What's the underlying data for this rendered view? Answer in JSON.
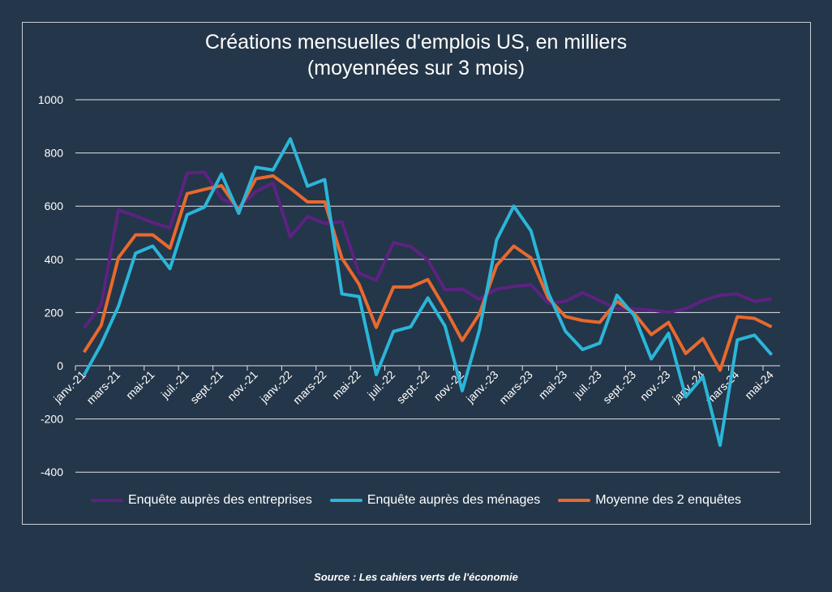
{
  "chart_data": {
    "type": "line",
    "title": "Créations mensuelles d'emplois US, en milliers",
    "subtitle": "(moyennées sur 3 mois)",
    "xlabel": "",
    "ylabel": "",
    "ylim": [
      -400,
      1000
    ],
    "yticks": [
      1000,
      800,
      600,
      400,
      200,
      0,
      -200,
      -400
    ],
    "grid": true,
    "legend_position": "bottom",
    "categories": [
      "janv.-21",
      "févr.-21",
      "mars-21",
      "avr.-21",
      "mai-21",
      "juin-21",
      "juil.-21",
      "août-21",
      "sept.-21",
      "oct.-21",
      "nov.-21",
      "déc.-21",
      "janv.-22",
      "févr.-22",
      "mars-22",
      "avr.-22",
      "mai-22",
      "juin-22",
      "juil.-22",
      "août-22",
      "sept.-22",
      "oct.-22",
      "nov.-22",
      "déc.-22",
      "janv.-23",
      "févr.-23",
      "mars-23",
      "avr.-23",
      "mai-23",
      "juin-23",
      "juil.-23",
      "août-23",
      "sept.-23",
      "oct.-23",
      "nov.-23",
      "déc.-23",
      "janv.-24",
      "févr.-24",
      "mars-24",
      "avr.-24",
      "mai-24"
    ],
    "tick_labels": [
      "janv.-21",
      "mars-21",
      "mai-21",
      "juil.-21",
      "sept.-21",
      "nov.-21",
      "janv.-22",
      "mars-22",
      "mai-22",
      "juil.-22",
      "sept.-22",
      "nov.-22",
      "janv.-23",
      "mars-23",
      "mai-23",
      "juil.-23",
      "sept.-23",
      "nov.-23",
      "janv.-24",
      "mars-24",
      "mai-24"
    ],
    "series": [
      {
        "name": "Enquête auprès des entreprises",
        "color": "#5c2282",
        "values": [
          142,
          228,
          586,
          563,
          538,
          518,
          724,
          728,
          629,
          596,
          655,
          687,
          484,
          561,
          535,
          541,
          348,
          321,
          463,
          448,
          397,
          286,
          288,
          250,
          288,
          298,
          304,
          235,
          242,
          275,
          245,
          214,
          214,
          209,
          201,
          214,
          245,
          265,
          270,
          242,
          252
        ]
      },
      {
        "name": "Enquête auprès des ménages",
        "color": "#2ab6d9",
        "values": [
          -36,
          81,
          223,
          423,
          450,
          365,
          568,
          596,
          721,
          573,
          746,
          736,
          853,
          675,
          700,
          270,
          260,
          -33,
          129,
          146,
          255,
          149,
          -94,
          134,
          473,
          600,
          507,
          275,
          130,
          61,
          85,
          265,
          189,
          26,
          122,
          -117,
          -41,
          -299,
          97,
          115,
          41
        ]
      },
      {
        "name": "Moyenne des 2 enquêtes",
        "color": "#e8692e",
        "values": [
          51,
          152,
          406,
          492,
          492,
          442,
          647,
          663,
          677,
          586,
          703,
          714,
          667,
          616,
          616,
          405,
          306,
          144,
          296,
          296,
          324,
          215,
          95,
          195,
          377,
          450,
          405,
          255,
          185,
          170,
          163,
          242,
          197,
          117,
          163,
          46,
          102,
          -17,
          184,
          178,
          146
        ]
      }
    ]
  },
  "source": "Source : Les cahiers verts de l'économie",
  "background_color": "#243649"
}
